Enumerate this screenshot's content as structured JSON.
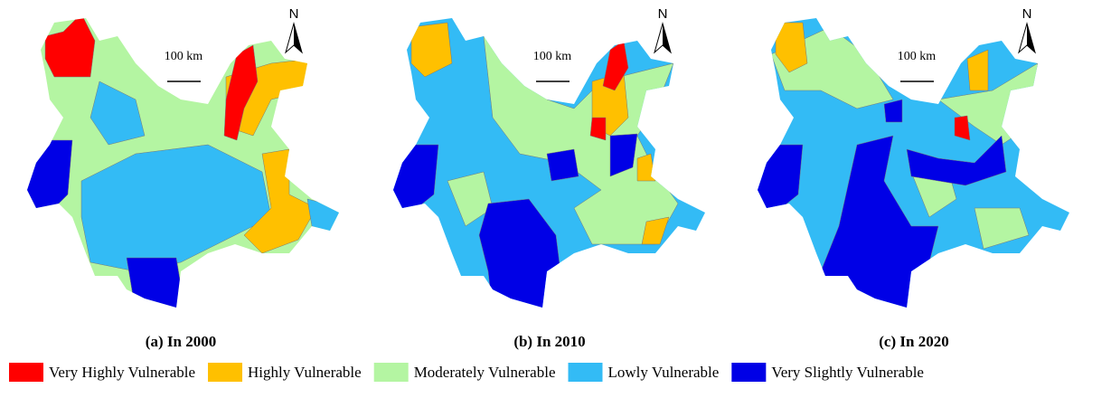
{
  "panels": [
    {
      "caption": "(a) In 2000",
      "scale_label": "100 km",
      "north_label": "N"
    },
    {
      "caption": "(b) In 2010",
      "scale_label": "100 km",
      "north_label": "N"
    },
    {
      "caption": "(c) In 2020",
      "scale_label": "100 km",
      "north_label": "N"
    }
  ],
  "legend": [
    {
      "label": "Very Highly Vulnerable",
      "color": "#ff0000"
    },
    {
      "label": "Highly Vulnerable",
      "color": "#ffc000"
    },
    {
      "label": "Moderately Vulnerable",
      "color": "#b4f5a2"
    },
    {
      "label": "Lowly Vulnerable",
      "color": "#33bbf5"
    },
    {
      "label": "Very Slightly Vulnerable",
      "color": "#0000e6"
    }
  ]
}
